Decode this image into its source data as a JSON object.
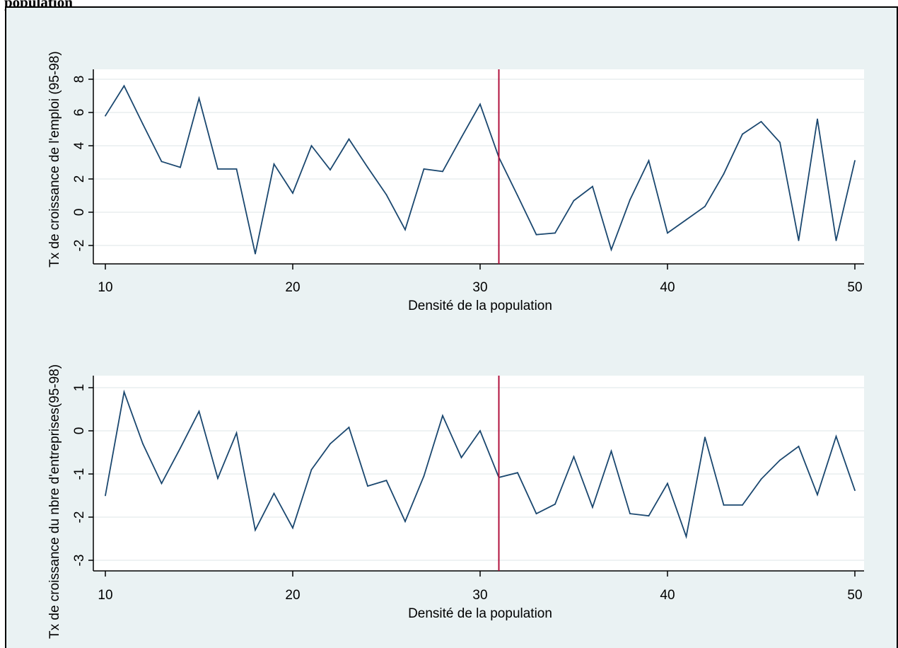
{
  "heading": "population",
  "chart_data": [
    {
      "type": "line",
      "title": "",
      "xlabel": "Densité de la population",
      "ylabel": "Tx de croissance de l'emploi (95-98)",
      "xlim": [
        10,
        50
      ],
      "ylim": [
        -3,
        8.5
      ],
      "xticks": [
        10,
        20,
        30,
        40,
        50
      ],
      "yticks": [
        8,
        6,
        4,
        2,
        0,
        -2
      ],
      "reference_line_x": 31,
      "series": [
        {
          "x": [
            10,
            11,
            12,
            13,
            14,
            15,
            16,
            17,
            18,
            19,
            20,
            21,
            22,
            23,
            24,
            25,
            26,
            27,
            28,
            29,
            30,
            31,
            32,
            33,
            34,
            35,
            36,
            37,
            38,
            39,
            40,
            41,
            42,
            43,
            44,
            45,
            46,
            47,
            48,
            49,
            50
          ],
          "y": [
            5.8,
            7.6,
            5.3,
            3.05,
            2.7,
            6.85,
            2.6,
            2.6,
            -2.5,
            2.9,
            1.15,
            4.0,
            2.55,
            4.4,
            2.7,
            1.05,
            -1.05,
            2.6,
            2.45,
            4.5,
            6.5,
            3.3,
            1.0,
            -1.35,
            -1.25,
            0.7,
            1.55,
            -2.25,
            0.75,
            3.1,
            -1.25,
            -0.45,
            0.35,
            2.3,
            4.7,
            5.45,
            4.2,
            -1.7,
            5.6,
            -1.7,
            3.1
          ]
        }
      ]
    },
    {
      "type": "line",
      "title": "",
      "xlabel": "Densité de la population",
      "ylabel": "Tx de croissance du nbre d'entreprises(95-98)",
      "xlim": [
        10,
        50
      ],
      "ylim": [
        -3.2,
        1.25
      ],
      "xticks": [
        10,
        20,
        30,
        40,
        50
      ],
      "yticks": [
        1,
        0,
        -1,
        -2,
        -3
      ],
      "reference_line_x": 31,
      "series": [
        {
          "x": [
            10,
            11,
            12,
            13,
            14,
            15,
            16,
            17,
            18,
            19,
            20,
            21,
            22,
            23,
            24,
            25,
            26,
            27,
            28,
            29,
            30,
            31,
            32,
            33,
            34,
            35,
            36,
            37,
            38,
            39,
            40,
            41,
            42,
            43,
            44,
            45,
            46,
            47,
            48,
            49,
            50
          ],
          "y": [
            -1.5,
            0.9,
            -0.3,
            -1.22,
            -0.4,
            0.45,
            -1.1,
            -0.05,
            -2.3,
            -1.45,
            -2.25,
            -0.9,
            -0.3,
            0.08,
            -1.28,
            -1.15,
            -2.1,
            -1.05,
            0.35,
            -0.62,
            0.0,
            -1.08,
            -0.97,
            -1.92,
            -1.7,
            -0.6,
            -1.77,
            -0.47,
            -1.92,
            -1.97,
            -1.22,
            -2.45,
            -0.15,
            -1.72,
            -1.72,
            -1.12,
            -0.68,
            -0.36,
            -1.48,
            -0.13,
            -1.38
          ]
        }
      ]
    }
  ]
}
